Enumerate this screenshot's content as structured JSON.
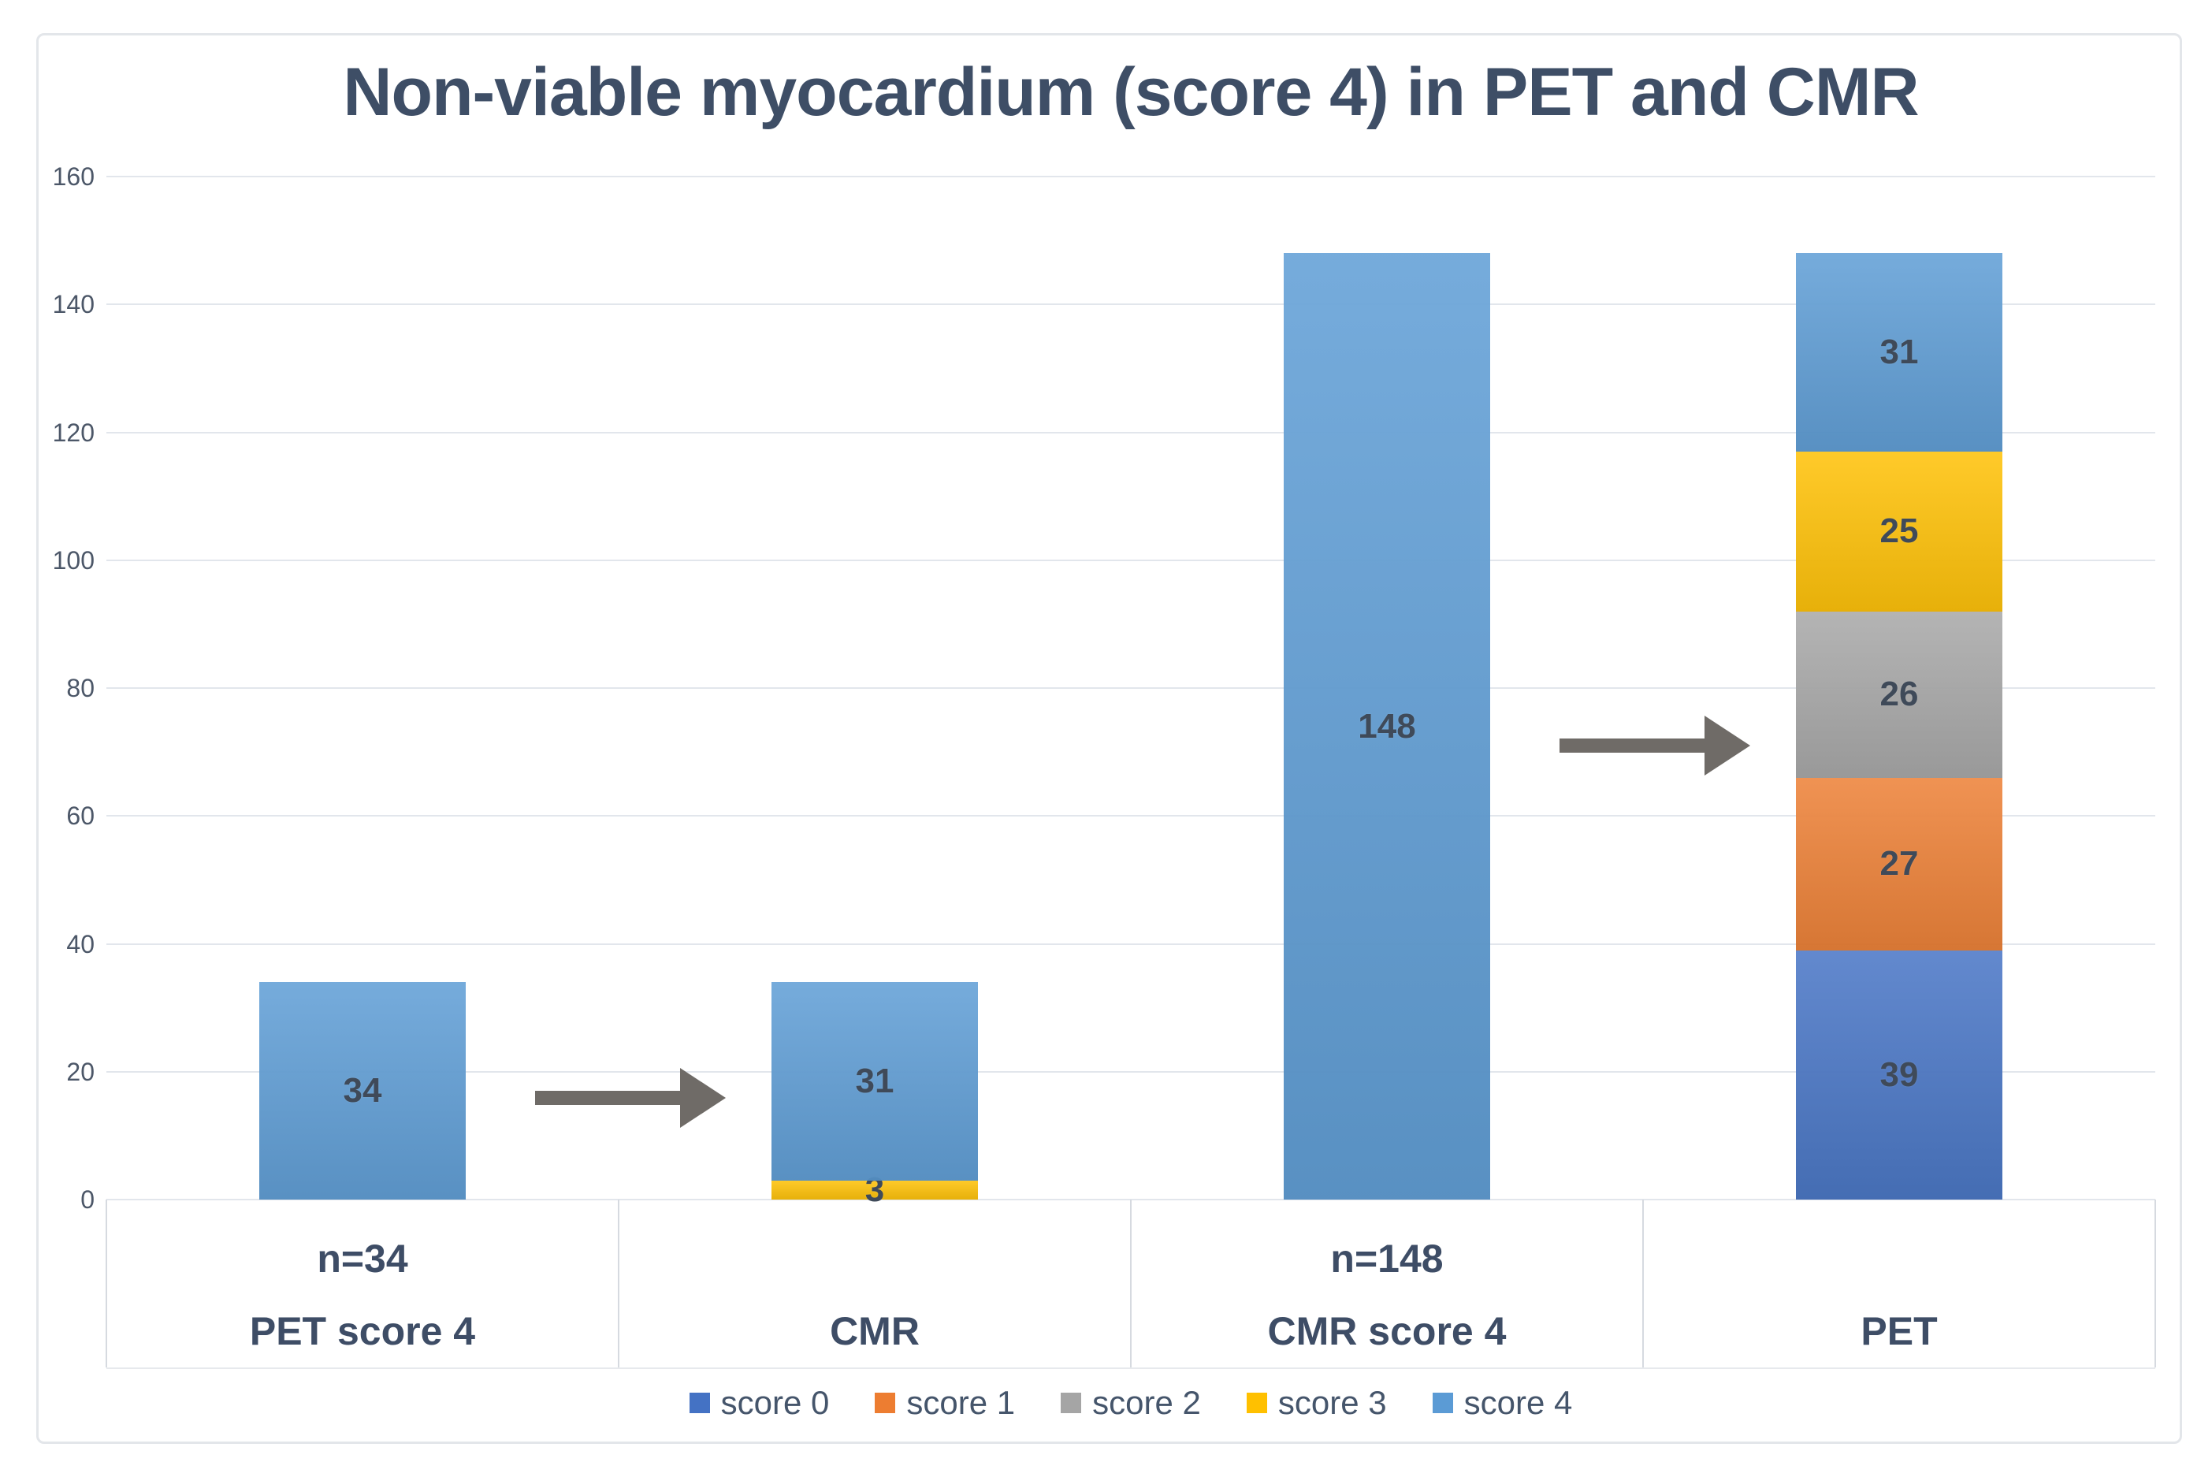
{
  "chart_data": {
    "type": "bar",
    "stacked": true,
    "title": "Non-viable myocardium (score 4) in PET and CMR",
    "xlabel": "",
    "ylabel": "",
    "ylim": [
      0,
      160
    ],
    "yticks": [
      0,
      20,
      40,
      60,
      80,
      100,
      120,
      140,
      160
    ],
    "grid": true,
    "legend_position": "bottom",
    "legend": [
      "score 0",
      "score 1",
      "score 2",
      "score 3",
      "score 4"
    ],
    "series_colors": {
      "score 0": "#4472C4",
      "score 1": "#ED7D31",
      "score 2": "#A5A5A5",
      "score 3": "#FFC000",
      "score 4": "#5B9BD5"
    },
    "bars": [
      {
        "group_label": "n=34",
        "category": "PET score 4",
        "total": 34,
        "segments": [
          {
            "series": "score 4",
            "value": 34
          }
        ]
      },
      {
        "group_label": "",
        "category": "CMR",
        "total": 34,
        "segments": [
          {
            "series": "score 3",
            "value": 3
          },
          {
            "series": "score 4",
            "value": 31
          }
        ]
      },
      {
        "group_label": "n=148",
        "category": "CMR score 4",
        "total": 148,
        "segments": [
          {
            "series": "score 4",
            "value": 148
          }
        ]
      },
      {
        "group_label": "",
        "category": "PET",
        "total": 148,
        "segments": [
          {
            "series": "score 0",
            "value": 39
          },
          {
            "series": "score 1",
            "value": 27
          },
          {
            "series": "score 2",
            "value": 26
          },
          {
            "series": "score 3",
            "value": 25
          },
          {
            "series": "score 4",
            "value": 31
          }
        ]
      }
    ],
    "annotations": [
      {
        "type": "arrow",
        "from_category": "PET score 4",
        "to_category": "CMR"
      },
      {
        "type": "arrow",
        "from_category": "CMR score 4",
        "to_category": "PET"
      }
    ],
    "arrow_color": "#6f6b67",
    "data_label_color": "#3f4a59",
    "text_color": "#3e4d66",
    "gridline_color": "#e2e6ec"
  }
}
